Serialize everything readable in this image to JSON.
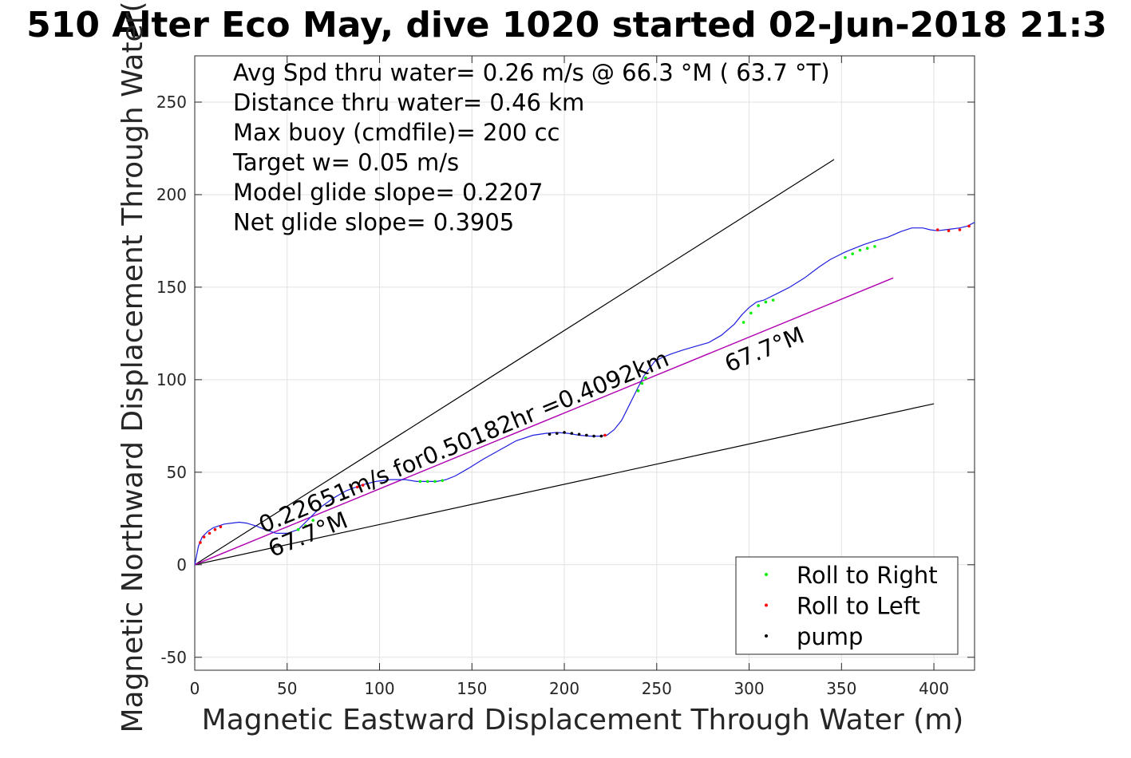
{
  "chart_data": {
    "type": "line",
    "title": "510 Alter Eco May, dive 1020 started 02-Jun-2018 21:3",
    "xlabel": "Magnetic Eastward Displacement Through Water (m)",
    "ylabel": "Magnetic Northward Displacement Through Water(",
    "xlim": [
      0,
      422
    ],
    "ylim": [
      -57,
      275
    ],
    "xticks": [
      0,
      50,
      100,
      150,
      200,
      250,
      300,
      350,
      400
    ],
    "yticks": [
      -50,
      0,
      50,
      100,
      150,
      200,
      250
    ],
    "grid": true,
    "legend_position": "bottom-right",
    "colors": {
      "track": "#1f1fe0",
      "roll_right": "#00ee00",
      "roll_left": "#ff0000",
      "pump": "#000000",
      "net_line": "#b000b0",
      "bounds": "#000000"
    },
    "stats": [
      "Avg Spd thru water=  0.26 m/s @  66.3 °M ( 63.7 °T)",
      "Distance thru water=  0.46 km",
      "Max buoy (cmdfile)= 200 cc",
      "Target w= 0.05 m/s",
      "Model glide slope= 0.2207",
      "Net glide slope= 0.3905"
    ],
    "annotations": {
      "net_label": "0.22651m/s for0.50182hr =0.4092km",
      "heading_near": "67.7°M",
      "heading_far": "67.7°M"
    },
    "legend": [
      {
        "label": "Roll to Right",
        "color": "#00ee00"
      },
      {
        "label": "Roll to Left",
        "color": "#ff0000"
      },
      {
        "label": "pump",
        "color": "#000000"
      }
    ],
    "lines": [
      {
        "name": "upper-bound",
        "x": [
          0,
          346
        ],
        "y": [
          0,
          219
        ]
      },
      {
        "name": "lower-bound",
        "x": [
          0,
          400
        ],
        "y": [
          0,
          87
        ]
      },
      {
        "name": "net-track",
        "x": [
          0,
          378
        ],
        "y": [
          0,
          155
        ]
      }
    ],
    "track": {
      "x": [
        0,
        2,
        4,
        7,
        10,
        13,
        16,
        20,
        24,
        28,
        33,
        38,
        44,
        50,
        56,
        62,
        68,
        75,
        82,
        90,
        98,
        106,
        114,
        120,
        126,
        131,
        136,
        141,
        148,
        156,
        165,
        174,
        183,
        190,
        196,
        202,
        208,
        214,
        219,
        223,
        227,
        231,
        235,
        238,
        241,
        243,
        246,
        249,
        253,
        258,
        264,
        271,
        278,
        285,
        292,
        296,
        300,
        304,
        308,
        312,
        316,
        322,
        330,
        338,
        344,
        348,
        352,
        357,
        362,
        368,
        375,
        382,
        388,
        394,
        398,
        402,
        406,
        410,
        414,
        418,
        422
      ],
      "y": [
        0,
        10,
        15,
        18,
        20,
        21,
        22,
        22.5,
        23,
        22.5,
        21,
        19,
        17,
        17,
        19,
        25,
        31,
        36,
        40,
        43,
        45,
        46,
        46,
        45,
        45,
        45,
        46,
        48,
        52,
        57,
        62,
        67,
        70,
        71,
        71.5,
        71,
        70,
        69.5,
        69.5,
        70,
        73,
        78,
        86,
        92,
        98,
        102,
        106,
        110,
        112,
        114,
        116,
        118,
        120,
        124,
        130,
        135,
        139,
        142,
        143,
        145,
        147,
        150,
        155,
        161,
        165,
        167,
        169,
        171,
        173,
        175,
        177,
        180,
        182,
        182,
        181,
        180.5,
        181,
        181.5,
        182,
        183,
        185
      ]
    },
    "markers": {
      "roll_right_x": [
        56,
        60,
        64,
        122,
        126,
        130,
        134,
        240,
        242,
        244,
        297,
        301,
        305,
        309,
        313,
        352,
        356,
        360,
        364,
        368
      ],
      "roll_right_y": [
        19,
        21,
        24,
        45,
        45,
        45,
        45.5,
        94,
        98,
        101,
        131,
        136,
        140,
        142,
        143,
        166,
        168,
        170,
        171,
        172
      ],
      "roll_left_x": [
        3,
        5,
        8,
        11,
        14,
        88,
        91,
        222,
        402,
        408,
        414,
        419
      ],
      "roll_left_y": [
        12,
        15,
        17,
        19,
        20.5,
        42,
        43,
        70,
        181,
        180.5,
        181,
        183
      ],
      "pump_x": [
        192,
        196,
        200,
        204,
        208,
        212,
        216,
        220
      ],
      "pump_y": [
        70.5,
        71,
        71.5,
        71,
        70.5,
        70,
        69.5,
        69.5
      ]
    }
  }
}
